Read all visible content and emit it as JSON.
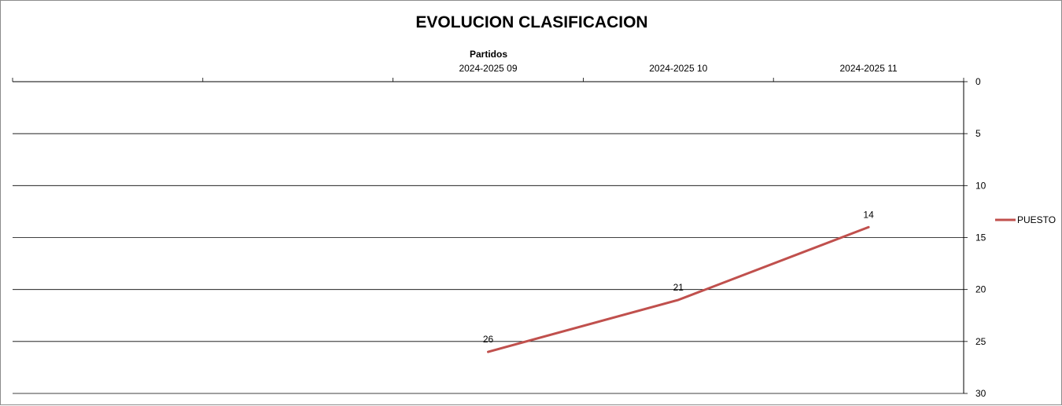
{
  "chart_data": {
    "type": "line",
    "title": "EVOLUCION CLASIFICACION",
    "xlabel": "Partidos",
    "ylabel": "",
    "categories": [
      "",
      "",
      "2024-2025 09",
      "2024-2025 10",
      "2024-2025 11"
    ],
    "series": [
      {
        "name": "PUESTO",
        "color": "#c0504d",
        "values": [
          null,
          null,
          26,
          21,
          14
        ]
      }
    ],
    "ylim": [
      0,
      30
    ],
    "y_reversed": true,
    "y_ticks": [
      0,
      5,
      10,
      15,
      20,
      25,
      30
    ],
    "x_axis_position": "top",
    "y_axis_position": "right",
    "grid": true,
    "legend_position": "right"
  }
}
